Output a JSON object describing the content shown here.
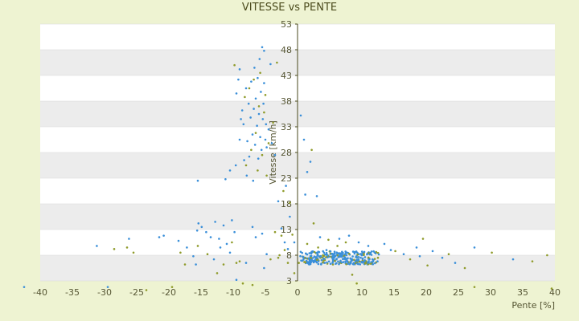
{
  "chart_data": {
    "type": "scatter",
    "title": "VITESSE vs PENTE",
    "xlabel": "Pente [%]",
    "ylabel": "Vitesse [km/h]",
    "xlim": [
      -40,
      40
    ],
    "ylim": [
      3,
      53
    ],
    "x_ticks": [
      -40,
      -35,
      -30,
      -25,
      -20,
      -15,
      -10,
      -5,
      0,
      5,
      10,
      15,
      20,
      25,
      30,
      35,
      40
    ],
    "y_ticks": [
      3,
      8,
      13,
      18,
      23,
      28,
      33,
      38,
      43,
      48,
      53
    ],
    "grid": "horizontal bands",
    "legend": "none",
    "colors": {
      "series_a": "#3a8fd9",
      "series_b": "#8f9b2a",
      "band": "#ececec",
      "axis_text": "#555533"
    },
    "series": [
      {
        "color": "#3a8fd9",
        "points": [
          [
            -42.5,
            1.8
          ],
          [
            -31.2,
            9.8
          ],
          [
            -29.5,
            1.8
          ],
          [
            -26.2,
            11.2
          ],
          [
            -21.5,
            11.5
          ],
          [
            -20.8,
            11.8
          ],
          [
            -18.5,
            10.8
          ],
          [
            -17.2,
            9.5
          ],
          [
            -16.2,
            7.8
          ],
          [
            -15.8,
            6.2
          ],
          [
            -15.6,
            12.8
          ],
          [
            -15.4,
            14.2
          ],
          [
            -15.5,
            22.5
          ],
          [
            -14.9,
            13.5
          ],
          [
            -14.2,
            12.5
          ],
          [
            -13.5,
            11.5
          ],
          [
            -12.8,
            14.5
          ],
          [
            -12.2,
            11.2
          ],
          [
            -11.5,
            13.8
          ],
          [
            -11.2,
            22.8
          ],
          [
            -10.5,
            24.5
          ],
          [
            -10.2,
            14.8
          ],
          [
            -9.8,
            12.5
          ],
          [
            -9.6,
            25.5
          ],
          [
            -9.5,
            39.5
          ],
          [
            -9.2,
            42.2
          ],
          [
            -9.0,
            30.5
          ],
          [
            -9.0,
            44.2
          ],
          [
            -8.8,
            34.5
          ],
          [
            -8.6,
            36.2
          ],
          [
            -8.4,
            33.5
          ],
          [
            -8.3,
            26.5
          ],
          [
            -8.0,
            40.5
          ],
          [
            -7.9,
            23.5
          ],
          [
            -7.8,
            30.2
          ],
          [
            -7.6,
            37.5
          ],
          [
            -7.5,
            27.2
          ],
          [
            -7.3,
            34.8
          ],
          [
            -7.2,
            41.8
          ],
          [
            -7.0,
            31.5
          ],
          [
            -6.9,
            22.5
          ],
          [
            -6.8,
            36.5
          ],
          [
            -6.7,
            44.5
          ],
          [
            -6.6,
            29.5
          ],
          [
            -6.5,
            38.5
          ],
          [
            -6.3,
            33.2
          ],
          [
            -6.2,
            42.5
          ],
          [
            -6.1,
            26.8
          ],
          [
            -6.0,
            35.5
          ],
          [
            -5.9,
            46.2
          ],
          [
            -5.8,
            31.0
          ],
          [
            -5.7,
            39.8
          ],
          [
            -5.6,
            28.5
          ],
          [
            -5.5,
            48.5
          ],
          [
            -5.4,
            34.5
          ],
          [
            -5.3,
            37.5
          ],
          [
            -5.2,
            41.5
          ],
          [
            -5.2,
            47.8
          ],
          [
            -5.0,
            30.5
          ],
          [
            -4.9,
            33.5
          ],
          [
            -4.8,
            29.0
          ],
          [
            -4.5,
            32.5
          ],
          [
            -4.2,
            45.2
          ],
          [
            -4.0,
            29.8
          ],
          [
            -3.5,
            27.5
          ],
          [
            -6.5,
            11.5
          ],
          [
            -7.0,
            13.5
          ],
          [
            -5.5,
            12.2
          ],
          [
            -8.0,
            6.5
          ],
          [
            -5.2,
            5.5
          ],
          [
            -4.8,
            8.2
          ],
          [
            -3.0,
            18.5
          ],
          [
            -2.5,
            13.2
          ],
          [
            -2.0,
            10.5
          ],
          [
            -1.8,
            21.5
          ],
          [
            -1.5,
            9.2
          ],
          [
            -1.2,
            15.5
          ],
          [
            -0.5,
            10.5
          ],
          [
            0.5,
            35.2
          ],
          [
            1.0,
            30.5
          ],
          [
            1.2,
            19.8
          ],
          [
            1.5,
            24.2
          ],
          [
            2.0,
            26.2
          ],
          [
            3.0,
            19.5
          ],
          [
            3.5,
            11.5
          ],
          [
            4.5,
            9.0
          ],
          [
            6.5,
            11.2
          ],
          [
            8.0,
            11.8
          ],
          [
            9.5,
            10.5
          ],
          [
            11.0,
            9.8
          ],
          [
            13.5,
            10.2
          ],
          [
            14.5,
            9.0
          ],
          [
            16.5,
            8.2
          ],
          [
            18.5,
            9.5
          ],
          [
            19.0,
            7.8
          ],
          [
            21.0,
            8.8
          ],
          [
            22.5,
            7.5
          ],
          [
            24.5,
            6.5
          ],
          [
            27.5,
            9.5
          ],
          [
            33.5,
            7.2
          ],
          [
            -9.5,
            3.2
          ],
          [
            -10.5,
            8.5
          ],
          [
            -11.0,
            10.2
          ],
          [
            -12.0,
            9.5
          ],
          [
            -13.0,
            7.2
          ]
        ]
      },
      {
        "color": "#8f9b2a",
        "points": [
          [
            -28.5,
            9.2
          ],
          [
            -25.5,
            8.5
          ],
          [
            -23.5,
            1.2
          ],
          [
            -19.5,
            1.8
          ],
          [
            -18.2,
            8.5
          ],
          [
            -17.5,
            6.2
          ],
          [
            -15.5,
            9.8
          ],
          [
            -14.0,
            8.2
          ],
          [
            -10.2,
            10.5
          ],
          [
            -9.8,
            45.0
          ],
          [
            -9.5,
            6.5
          ],
          [
            -9.0,
            6.8
          ],
          [
            -8.5,
            2.5
          ],
          [
            -8.2,
            38.8
          ],
          [
            -8.0,
            25.5
          ],
          [
            -7.5,
            40.5
          ],
          [
            -7.2,
            28.5
          ],
          [
            -7.0,
            2.2
          ],
          [
            -6.8,
            42.2
          ],
          [
            -6.5,
            31.8
          ],
          [
            -6.2,
            24.5
          ],
          [
            -6.0,
            37.0
          ],
          [
            -5.8,
            43.5
          ],
          [
            -5.5,
            27.5
          ],
          [
            -5.2,
            35.8
          ],
          [
            -5.0,
            39.2
          ],
          [
            -4.8,
            23.5
          ],
          [
            -4.5,
            29.8
          ],
          [
            -4.2,
            7.2
          ],
          [
            -3.8,
            33.8
          ],
          [
            -3.5,
            12.5
          ],
          [
            -3.2,
            45.5
          ],
          [
            -2.8,
            8.0
          ],
          [
            -2.5,
            11.8
          ],
          [
            -2.2,
            20.5
          ],
          [
            -1.5,
            6.5
          ],
          [
            -1.2,
            18.2
          ],
          [
            -0.8,
            12.0
          ],
          [
            -0.5,
            4.5
          ],
          [
            0.2,
            6.5
          ],
          [
            1.5,
            10.2
          ],
          [
            2.2,
            28.5
          ],
          [
            2.5,
            14.2
          ],
          [
            3.2,
            9.5
          ],
          [
            4.8,
            11.0
          ],
          [
            5.5,
            6.2
          ],
          [
            6.2,
            9.8
          ],
          [
            7.5,
            10.5
          ],
          [
            8.5,
            4.2
          ],
          [
            9.2,
            2.5
          ],
          [
            10.5,
            6.5
          ],
          [
            12.5,
            7.5
          ],
          [
            15.2,
            8.8
          ],
          [
            17.5,
            7.2
          ],
          [
            19.5,
            11.2
          ],
          [
            20.2,
            6.0
          ],
          [
            23.5,
            8.2
          ],
          [
            26.0,
            5.5
          ],
          [
            27.5,
            1.8
          ],
          [
            30.2,
            8.5
          ],
          [
            36.5,
            6.8
          ],
          [
            38.8,
            8.0
          ],
          [
            39.5,
            1.5
          ],
          [
            -26.5,
            9.5
          ],
          [
            -12.5,
            4.5
          ],
          [
            -11.5,
            6.2
          ],
          [
            -3.0,
            7.5
          ],
          [
            -2.0,
            9.0
          ]
        ]
      }
    ]
  }
}
